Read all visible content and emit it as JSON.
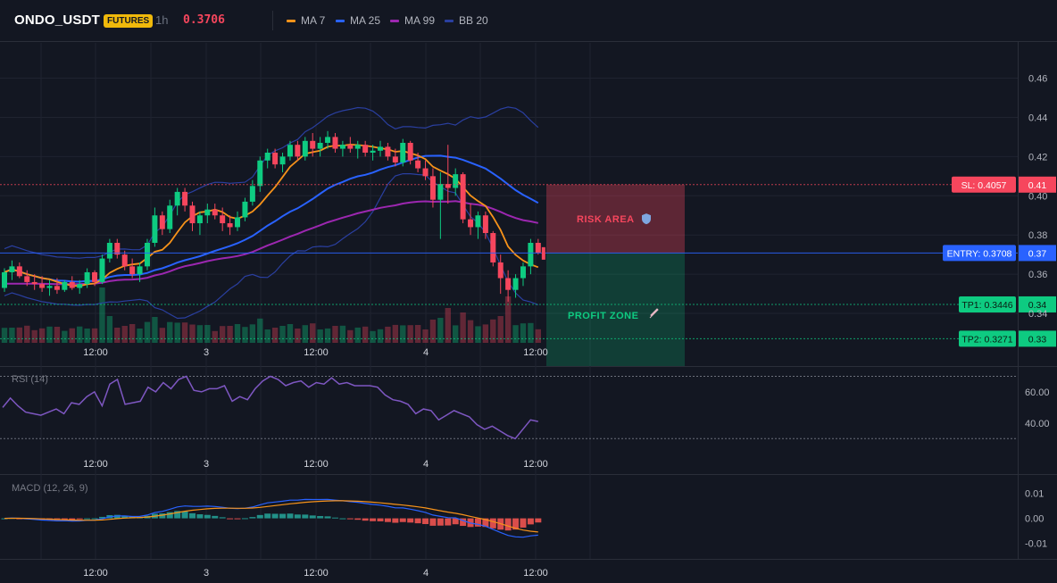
{
  "header": {
    "symbol": "ONDO_USDT",
    "badge": "FUTURES",
    "timeframe": "1h",
    "price": "0.3706",
    "legend": [
      {
        "name": "MA 7",
        "color": "#f7931a"
      },
      {
        "name": "MA 25",
        "color": "#2962ff"
      },
      {
        "name": "MA 99",
        "color": "#9c27b0"
      },
      {
        "name": "BB 20",
        "color": "#2a3fa0"
      }
    ]
  },
  "colors": {
    "bg": "#131722",
    "up": "#0ecb81",
    "down": "#f6465d",
    "grid": "#1f2330"
  },
  "chart_data": [
    {
      "type": "candlestick",
      "panel": "price",
      "ylim": [
        0.325,
        0.478
      ],
      "yticks": [
        0.34,
        0.36,
        0.38,
        0.4,
        0.42,
        0.44,
        0.46
      ],
      "xticks": [
        "12:00",
        "3",
        "12:00",
        "4",
        "12:00"
      ],
      "series": [
        {
          "name": "MA 7",
          "color": "#f7931a"
        },
        {
          "name": "MA 25",
          "color": "#2962ff"
        },
        {
          "name": "MA 99",
          "color": "#9c27b0"
        },
        {
          "name": "BB 20",
          "color": "#2a3fa0"
        }
      ],
      "levels": [
        {
          "label": "SL: 0.4057",
          "value": 0.4057,
          "axis_label": "0.41",
          "color": "#f6465d"
        },
        {
          "label": "ENTRY: 0.3708",
          "value": 0.3708,
          "axis_label": "0.37",
          "color": "#2962ff"
        },
        {
          "label": "TP1: 0.3446",
          "value": 0.3446,
          "axis_label": "0.34",
          "color": "#0ecb81"
        },
        {
          "label": "TP2: 0.3271",
          "value": 0.3271,
          "axis_label": "0.33",
          "color": "#0ecb81"
        }
      ],
      "zones": [
        {
          "label": "RISK AREA",
          "icon": "shield-icon",
          "from": 0.3708,
          "to": 0.4057
        },
        {
          "label": "PROFIT ZONE",
          "icon": "rocket-icon",
          "from": 0.3271,
          "to": 0.3708
        }
      ],
      "candles_ohlc": [
        [
          0.353,
          0.363,
          0.351,
          0.361
        ],
        [
          0.361,
          0.367,
          0.357,
          0.364
        ],
        [
          0.364,
          0.366,
          0.358,
          0.359
        ],
        [
          0.359,
          0.362,
          0.354,
          0.356
        ],
        [
          0.356,
          0.36,
          0.352,
          0.355
        ],
        [
          0.355,
          0.359,
          0.351,
          0.353
        ],
        [
          0.353,
          0.357,
          0.349,
          0.354
        ],
        [
          0.354,
          0.358,
          0.35,
          0.352
        ],
        [
          0.352,
          0.357,
          0.351,
          0.356
        ],
        [
          0.356,
          0.359,
          0.352,
          0.353
        ],
        [
          0.353,
          0.357,
          0.35,
          0.355
        ],
        [
          0.355,
          0.363,
          0.353,
          0.361
        ],
        [
          0.361,
          0.362,
          0.354,
          0.356
        ],
        [
          0.356,
          0.37,
          0.355,
          0.368
        ],
        [
          0.368,
          0.378,
          0.366,
          0.376
        ],
        [
          0.376,
          0.378,
          0.368,
          0.37
        ],
        [
          0.37,
          0.372,
          0.362,
          0.364
        ],
        [
          0.364,
          0.368,
          0.358,
          0.36
        ],
        [
          0.36,
          0.366,
          0.356,
          0.364
        ],
        [
          0.364,
          0.378,
          0.362,
          0.376
        ],
        [
          0.376,
          0.394,
          0.374,
          0.39
        ],
        [
          0.39,
          0.392,
          0.38,
          0.383
        ],
        [
          0.383,
          0.398,
          0.381,
          0.395
        ],
        [
          0.395,
          0.404,
          0.39,
          0.402
        ],
        [
          0.402,
          0.404,
          0.392,
          0.395
        ],
        [
          0.395,
          0.397,
          0.382,
          0.386
        ],
        [
          0.386,
          0.392,
          0.38,
          0.39
        ],
        [
          0.39,
          0.396,
          0.386,
          0.393
        ],
        [
          0.393,
          0.396,
          0.388,
          0.39
        ],
        [
          0.39,
          0.394,
          0.382,
          0.386
        ],
        [
          0.386,
          0.39,
          0.38,
          0.384
        ],
        [
          0.384,
          0.392,
          0.382,
          0.389
        ],
        [
          0.389,
          0.399,
          0.387,
          0.397
        ],
        [
          0.397,
          0.408,
          0.395,
          0.405
        ],
        [
          0.405,
          0.42,
          0.402,
          0.418
        ],
        [
          0.418,
          0.424,
          0.414,
          0.422
        ],
        [
          0.422,
          0.424,
          0.414,
          0.416
        ],
        [
          0.416,
          0.422,
          0.412,
          0.42
        ],
        [
          0.42,
          0.428,
          0.418,
          0.426
        ],
        [
          0.426,
          0.428,
          0.418,
          0.42
        ],
        [
          0.42,
          0.43,
          0.418,
          0.428
        ],
        [
          0.428,
          0.432,
          0.42,
          0.424
        ],
        [
          0.424,
          0.43,
          0.42,
          0.427
        ],
        [
          0.427,
          0.433,
          0.424,
          0.43
        ],
        [
          0.43,
          0.432,
          0.422,
          0.424
        ],
        [
          0.424,
          0.428,
          0.42,
          0.426
        ],
        [
          0.426,
          0.43,
          0.422,
          0.424
        ],
        [
          0.424,
          0.428,
          0.419,
          0.426
        ],
        [
          0.426,
          0.428,
          0.42,
          0.422
        ],
        [
          0.422,
          0.426,
          0.418,
          0.423
        ],
        [
          0.423,
          0.428,
          0.42,
          0.425
        ],
        [
          0.425,
          0.427,
          0.418,
          0.42
        ],
        [
          0.42,
          0.424,
          0.415,
          0.417
        ],
        [
          0.417,
          0.429,
          0.415,
          0.427
        ],
        [
          0.427,
          0.428,
          0.416,
          0.418
        ],
        [
          0.418,
          0.422,
          0.412,
          0.414
        ],
        [
          0.414,
          0.418,
          0.408,
          0.41
        ],
        [
          0.41,
          0.414,
          0.394,
          0.398
        ],
        [
          0.398,
          0.412,
          0.378,
          0.406
        ],
        [
          0.406,
          0.426,
          0.396,
          0.404
        ],
        [
          0.404,
          0.414,
          0.4,
          0.411
        ],
        [
          0.411,
          0.412,
          0.386,
          0.388
        ],
        [
          0.388,
          0.396,
          0.38,
          0.384
        ],
        [
          0.384,
          0.392,
          0.378,
          0.39
        ],
        [
          0.39,
          0.392,
          0.378,
          0.381
        ],
        [
          0.381,
          0.382,
          0.364,
          0.366
        ],
        [
          0.366,
          0.37,
          0.35,
          0.358
        ],
        [
          0.358,
          0.362,
          0.346,
          0.352
        ],
        [
          0.352,
          0.36,
          0.348,
          0.358
        ],
        [
          0.358,
          0.366,
          0.354,
          0.364
        ],
        [
          0.364,
          0.378,
          0.36,
          0.376
        ],
        [
          0.376,
          0.378,
          0.37,
          0.371
        ]
      ]
    },
    {
      "type": "line",
      "panel": "rsi",
      "title": "RSI (14)",
      "ylim": [
        25,
        72
      ],
      "yticks": [
        40,
        60
      ],
      "xticks": [
        "12:00",
        "3",
        "12:00",
        "4",
        "12:00"
      ],
      "series": [
        {
          "values": [
            50,
            56,
            51,
            47,
            46,
            45,
            47,
            49,
            46,
            53,
            52,
            57,
            60,
            51,
            65,
            68,
            52,
            53,
            54,
            63,
            60,
            66,
            62,
            68,
            70,
            61,
            60,
            62,
            62,
            64,
            54,
            57,
            55,
            62,
            67,
            70,
            68,
            64,
            66,
            67,
            63,
            66,
            65,
            69,
            65,
            66,
            64,
            64,
            64,
            63,
            58,
            55,
            54,
            52,
            46,
            49,
            48,
            42,
            45,
            48,
            46,
            44,
            39,
            36,
            38,
            35,
            32,
            30,
            36,
            42,
            41
          ]
        }
      ]
    },
    {
      "type": "bar+line",
      "panel": "macd",
      "title": "MACD (12, 26, 9)",
      "ylim": [
        -0.0148,
        0.0145
      ],
      "yticks": [
        -0.01,
        0.0,
        0.01
      ],
      "yticklabels": [
        "-0.01",
        "0.00",
        "0.01"
      ],
      "xticks": [
        "12:00",
        "3",
        "12:00",
        "4",
        "12:00"
      ]
    }
  ]
}
